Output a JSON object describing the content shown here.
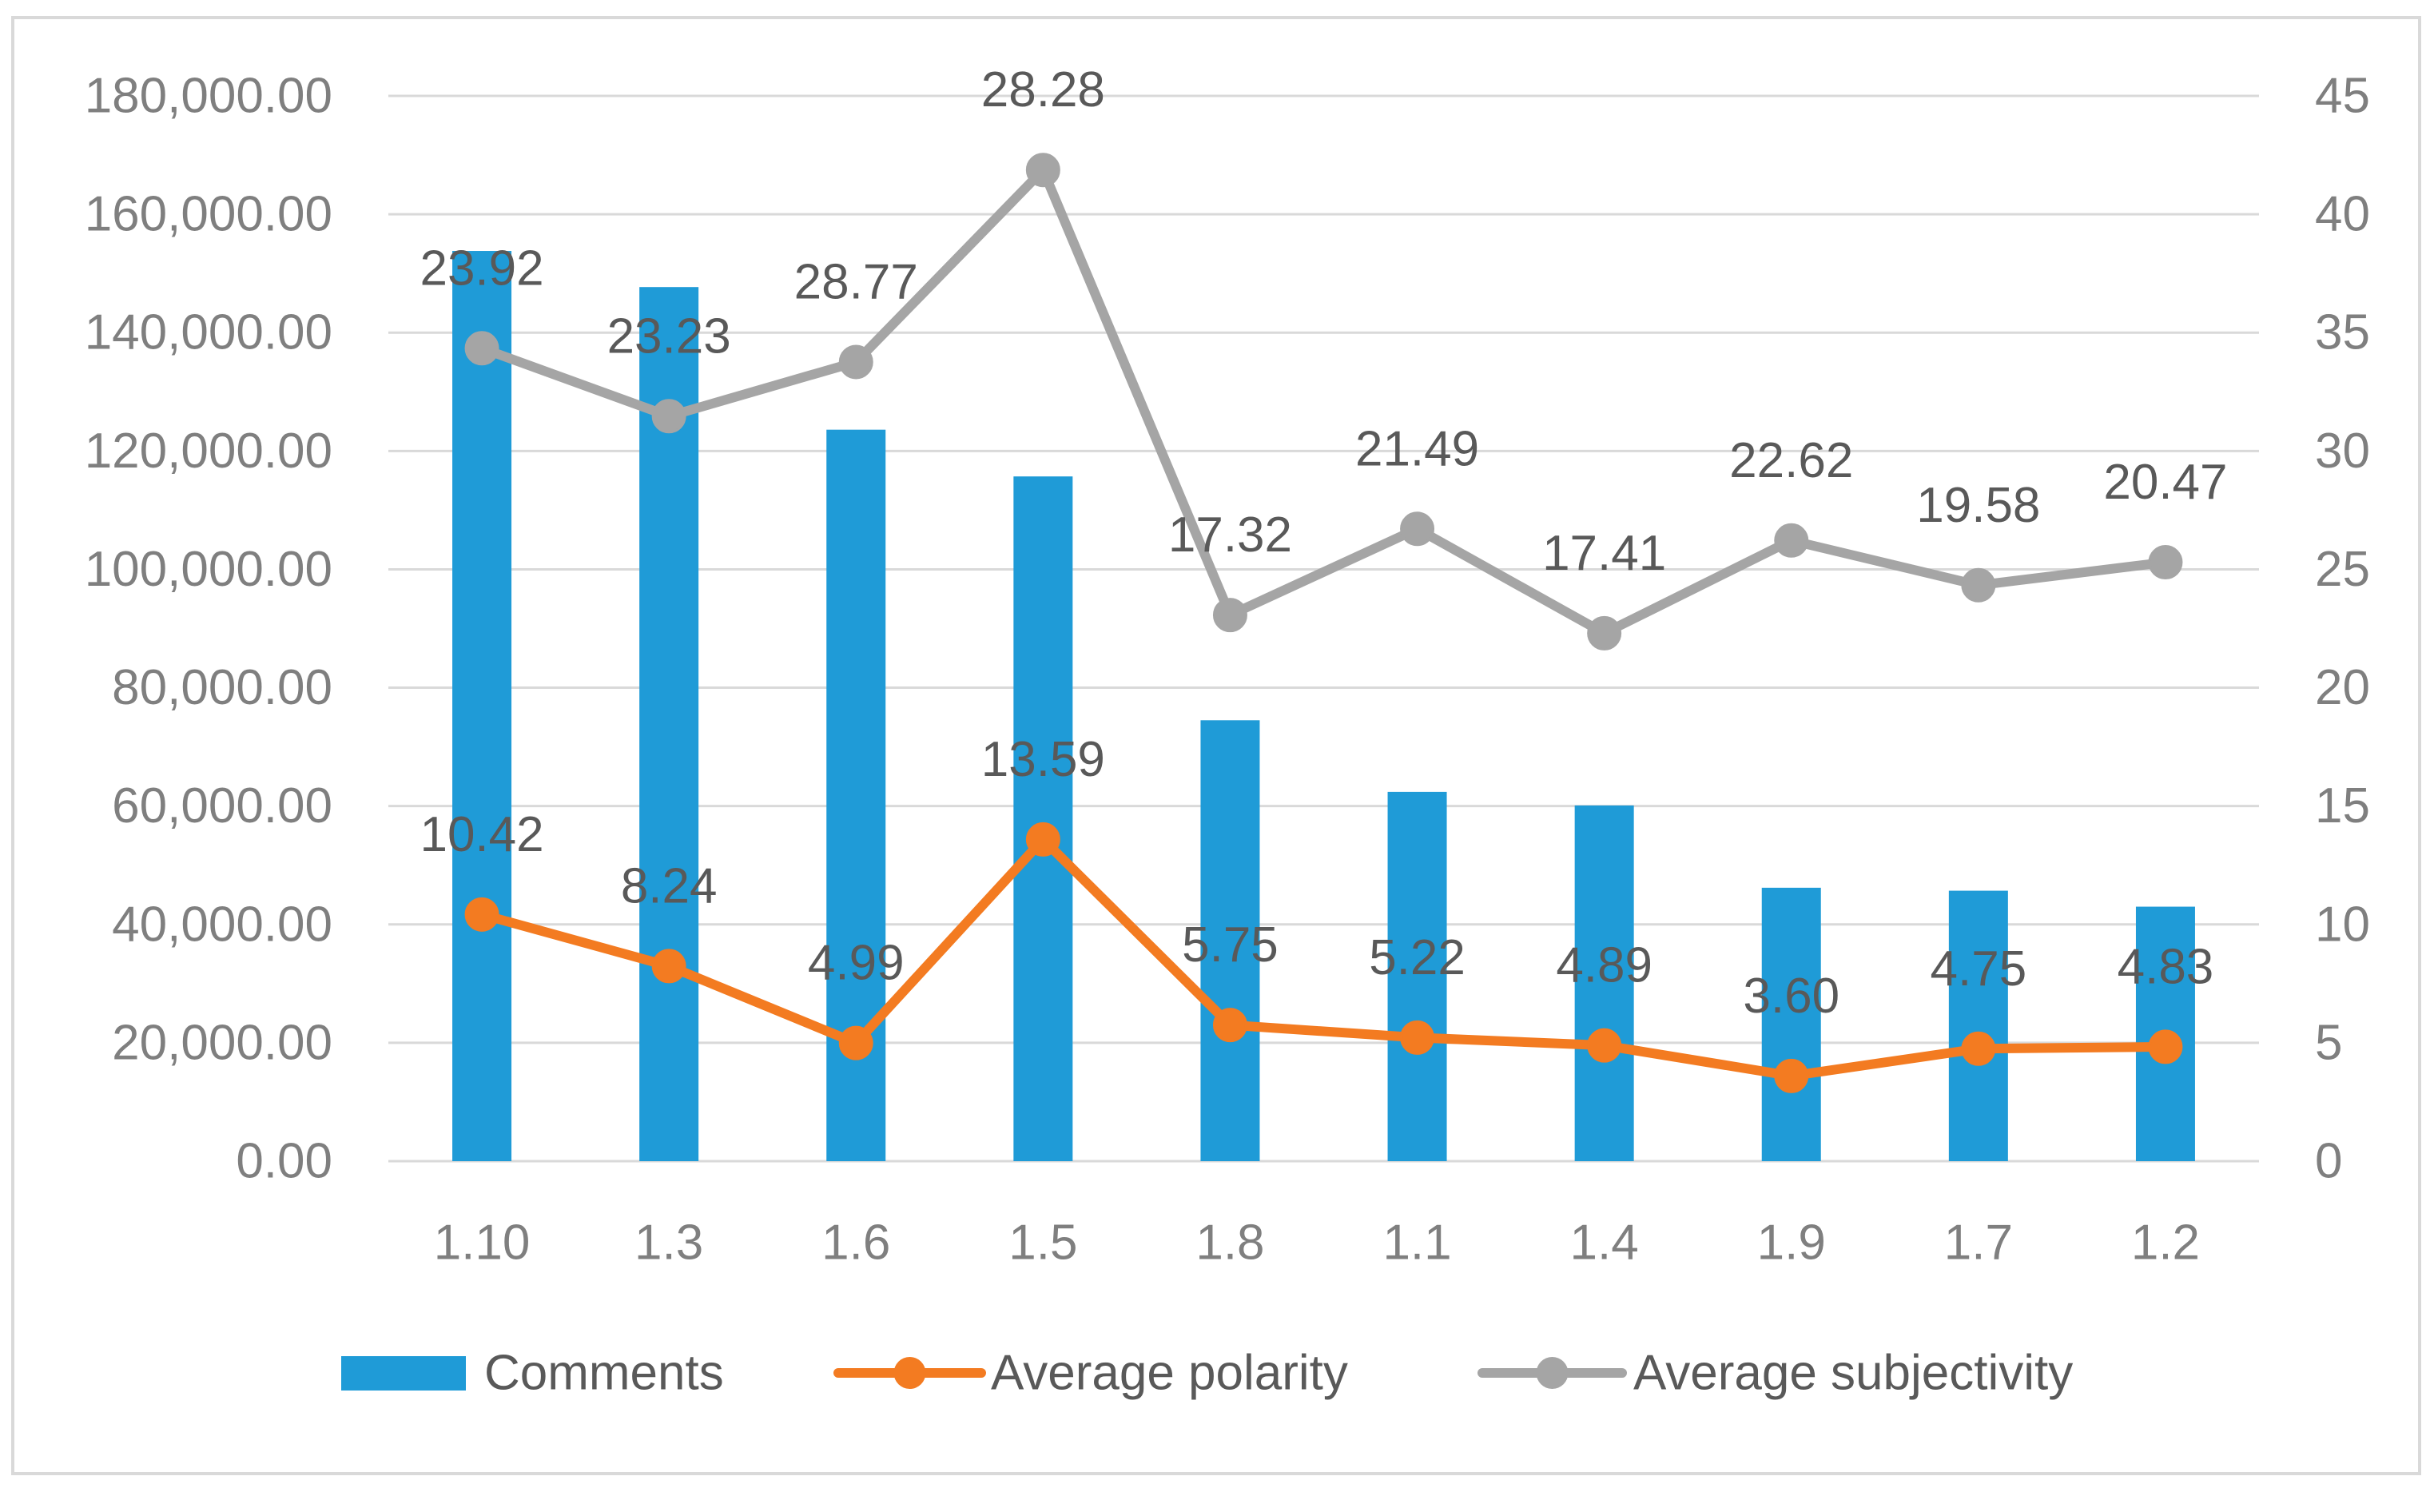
{
  "chart_data": {
    "type": "bar",
    "combo": "bar+line",
    "title": "",
    "xlabel": "",
    "ylabel": "",
    "y2label": "",
    "categories": [
      "1.10",
      "1.3",
      "1.6",
      "1.5",
      "1.8",
      "1.1",
      "1.4",
      "1.9",
      "1.7",
      "1.2"
    ],
    "yaxis_left": {
      "range": [
        0,
        180000
      ],
      "step": 20000,
      "tick_labels": [
        "0.00",
        "20,000.00",
        "40,000.00",
        "60,000.00",
        "80,000.00",
        "100,000.00",
        "120,000.00",
        "140,000.00",
        "160,000.00",
        "180,000.00"
      ]
    },
    "yaxis_right": {
      "range": [
        0,
        45
      ],
      "step": 5,
      "tick_labels": [
        "0",
        "5",
        "10",
        "15",
        "20",
        "25",
        "30",
        "35",
        "40",
        "45"
      ]
    },
    "grid": true,
    "legend": {
      "position": "bottom"
    },
    "series": [
      {
        "name": "Comments",
        "type": "bar",
        "axis": "left",
        "color": "#1F9BD7",
        "values": [
          153800,
          147700,
          123600,
          115700,
          74500,
          62400,
          60100,
          46200,
          45700,
          43000
        ]
      },
      {
        "name": "Average polarity",
        "type": "line",
        "axis": "right",
        "marker": "circle",
        "color": "#F37B21",
        "values": [
          10.42,
          8.24,
          4.99,
          13.59,
          5.75,
          5.22,
          4.89,
          3.6,
          4.75,
          4.83
        ],
        "data_labels": [
          "10.42",
          "8.24",
          "4.99",
          "13.59",
          "5.75",
          "5.22",
          "4.89",
          "3.60",
          "4.75",
          "4.83"
        ]
      },
      {
        "name": "Average subjectivity",
        "type": "line",
        "axis": "right",
        "marker": "circle",
        "stacked": true,
        "color": "#A5A5A5",
        "values": [
          23.92,
          23.23,
          28.77,
          28.28,
          17.32,
          21.49,
          17.41,
          22.62,
          19.58,
          20.47
        ],
        "data_labels": [
          "23.92",
          "23.23",
          "28.77",
          "28.28",
          "17.32",
          "21.49",
          "17.41",
          "22.62",
          "19.58",
          "20.47"
        ]
      }
    ]
  },
  "colors": {
    "grid": "#D9D9D9",
    "border": "#D9D9D9",
    "axis_text": "#7F7F7F",
    "label_text": "#595959",
    "background": "#FFFFFF"
  }
}
